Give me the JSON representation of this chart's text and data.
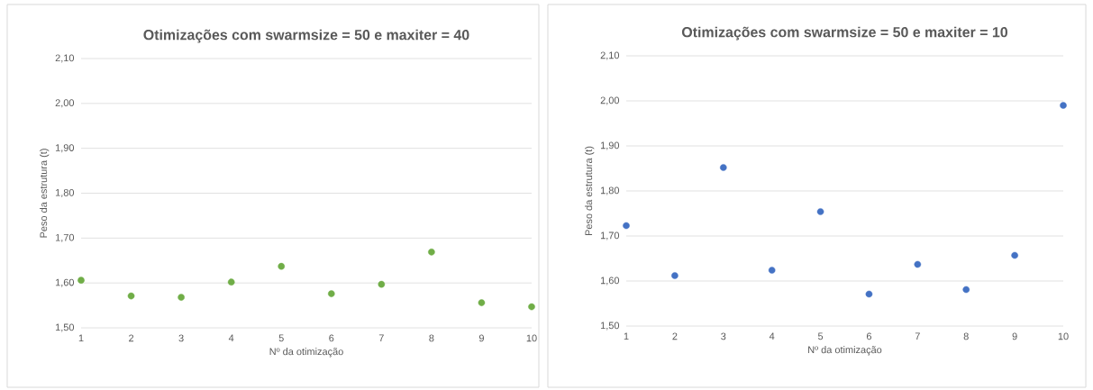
{
  "chart_data": [
    {
      "type": "scatter",
      "title": "Otimizações com swarmsize = 50 e maxiter = 40",
      "xlabel": "Nº da otimização",
      "ylabel": "Peso da estrutura (t)",
      "x": [
        1,
        2,
        3,
        4,
        5,
        6,
        7,
        8,
        9,
        10
      ],
      "series": [
        {
          "color": "#70ad47",
          "values": [
            1.606,
            1.571,
            1.568,
            1.602,
            1.637,
            1.576,
            1.597,
            1.669,
            1.556,
            1.547
          ]
        }
      ],
      "xlim": [
        1,
        10
      ],
      "xticks": [
        1,
        2,
        3,
        4,
        5,
        6,
        7,
        8,
        9,
        10
      ],
      "ylim": [
        1.5,
        2.1
      ],
      "yticks": [
        {
          "value": 1.5,
          "label": "1,50"
        },
        {
          "value": 1.6,
          "label": "1,60"
        },
        {
          "value": 1.7,
          "label": "1,70"
        },
        {
          "value": 1.8,
          "label": "1,80"
        },
        {
          "value": 1.9,
          "label": "1,90"
        },
        {
          "value": 2.0,
          "label": "2,00"
        },
        {
          "value": 2.1,
          "label": "2,10"
        }
      ],
      "grid": "y"
    },
    {
      "type": "scatter",
      "title": "Otimizações com swarmsize = 50 e maxiter = 10",
      "xlabel": "Nº da otimização",
      "ylabel": "Peso da estrutura (t)",
      "x": [
        1,
        2,
        3,
        4,
        5,
        6,
        7,
        8,
        9,
        10
      ],
      "series": [
        {
          "color": "#4472c4",
          "values": [
            1.723,
            1.612,
            1.852,
            1.624,
            1.754,
            1.571,
            1.637,
            1.581,
            1.657,
            1.99
          ]
        }
      ],
      "xlim": [
        1,
        10
      ],
      "xticks": [
        1,
        2,
        3,
        4,
        5,
        6,
        7,
        8,
        9,
        10
      ],
      "ylim": [
        1.5,
        2.1
      ],
      "yticks": [
        {
          "value": 1.5,
          "label": "1,50"
        },
        {
          "value": 1.6,
          "label": "1,60"
        },
        {
          "value": 1.7,
          "label": "1,70"
        },
        {
          "value": 1.8,
          "label": "1,80"
        },
        {
          "value": 1.9,
          "label": "1,90"
        },
        {
          "value": 2.0,
          "label": "2,00"
        },
        {
          "value": 2.1,
          "label": "2,10"
        }
      ],
      "grid": "y"
    }
  ]
}
